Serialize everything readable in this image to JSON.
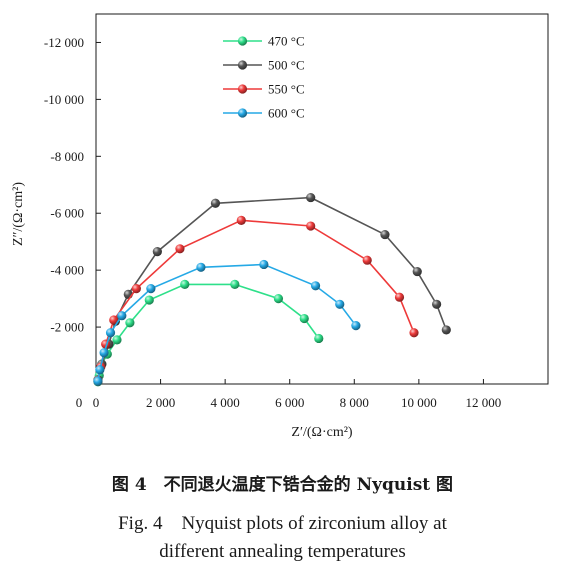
{
  "chart_data": {
    "type": "scatter",
    "xlabel": "Z′/(Ω·cm²)",
    "ylabel": "Z″/(Ω·cm²)",
    "xlim": [
      0,
      14000
    ],
    "ylim": [
      0,
      -13000
    ],
    "x_ticks": [
      0,
      2000,
      4000,
      6000,
      8000,
      10000,
      12000
    ],
    "x_tick_labels": [
      "0",
      "2 000",
      "4 000",
      "6 000",
      "8 000",
      "10 000",
      "12 000"
    ],
    "y_ticks": [
      -2000,
      -4000,
      -6000,
      -8000,
      -10000,
      -12000
    ],
    "y_tick_labels": [
      "-2 000",
      "-4 000",
      "-6 000",
      "-8 000",
      "-10 000",
      "-12 000"
    ],
    "legend_position": "top-left",
    "grid": false,
    "series": [
      {
        "name": "470 °C",
        "color": "#2ee08a",
        "points": [
          [
            60,
            -80
          ],
          [
            100,
            -300
          ],
          [
            180,
            -700
          ],
          [
            350,
            -1050
          ],
          [
            650,
            -1550
          ],
          [
            1050,
            -2150
          ],
          [
            1650,
            -2950
          ],
          [
            2750,
            -3500
          ],
          [
            4300,
            -3500
          ],
          [
            5650,
            -3000
          ],
          [
            6450,
            -2300
          ],
          [
            6900,
            -1600
          ]
        ]
      },
      {
        "name": "500 °C",
        "color": "#555555",
        "points": [
          [
            60,
            -150
          ],
          [
            180,
            -700
          ],
          [
            400,
            -1400
          ],
          [
            600,
            -2200
          ],
          [
            1000,
            -3150
          ],
          [
            1900,
            -4650
          ],
          [
            3700,
            -6350
          ],
          [
            6650,
            -6550
          ],
          [
            8950,
            -5250
          ],
          [
            9950,
            -3950
          ],
          [
            10550,
            -2800
          ],
          [
            10850,
            -1900
          ]
        ]
      },
      {
        "name": "550 °C",
        "color": "#ee3a3a",
        "points": [
          [
            60,
            -100
          ],
          [
            150,
            -600
          ],
          [
            300,
            -1400
          ],
          [
            550,
            -2250
          ],
          [
            1250,
            -3350
          ],
          [
            2600,
            -4750
          ],
          [
            4500,
            -5750
          ],
          [
            6650,
            -5550
          ],
          [
            8400,
            -4350
          ],
          [
            9400,
            -3050
          ],
          [
            9850,
            -1800
          ]
        ]
      },
      {
        "name": "600 °C",
        "color": "#25a9e6",
        "points": [
          [
            60,
            -100
          ],
          [
            120,
            -500
          ],
          [
            250,
            -1100
          ],
          [
            450,
            -1800
          ],
          [
            800,
            -2400
          ],
          [
            1700,
            -3350
          ],
          [
            3250,
            -4100
          ],
          [
            5200,
            -4200
          ],
          [
            6800,
            -3450
          ],
          [
            7550,
            -2800
          ],
          [
            8050,
            -2050
          ]
        ]
      }
    ]
  },
  "caption": {
    "zh": "图 4　不同退火温度下锆合金的 Nyquist 图",
    "en_line1": "Fig. 4　Nyquist plots of zirconium alloy at",
    "en_line2": "different annealing temperatures"
  }
}
